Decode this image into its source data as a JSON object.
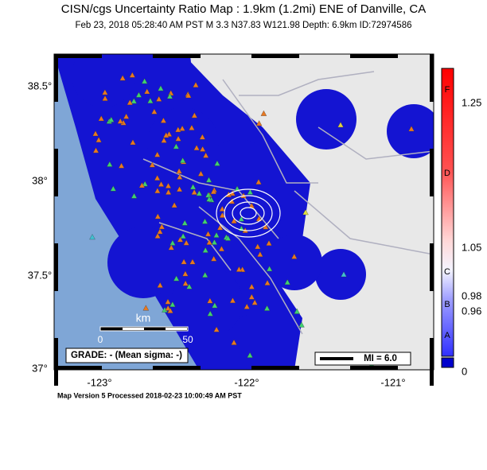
{
  "header": {
    "title": "CISN/cgs Uncertainty Ratio Map : 1.9km (1.2mi) ENE of Danville, CA",
    "subtitle": "Feb 23, 2018 05:28:40 AM PST   M 3.3   N37.83 W121.98   Depth: 6.9km   ID:72974586"
  },
  "map": {
    "lat_labels": [
      "38.5°",
      "38°",
      "37.5°",
      "37°"
    ],
    "lon_labels": [
      "-123°",
      "-122°",
      "-121°"
    ],
    "scale": {
      "unit": "km",
      "labels": [
        "0",
        "50"
      ]
    },
    "grade": "GRADE: - (Mean sigma: -)",
    "legend": "MI = 6.0"
  },
  "colorbar": {
    "ticks": [
      "1.25",
      "1.05",
      "0.98",
      "0.96",
      "0"
    ],
    "letters": [
      "F",
      "D",
      "C",
      "B",
      "A"
    ]
  },
  "footer": "Map Version 5 Processed 2018-02-23 10:00:49 AM PST"
}
